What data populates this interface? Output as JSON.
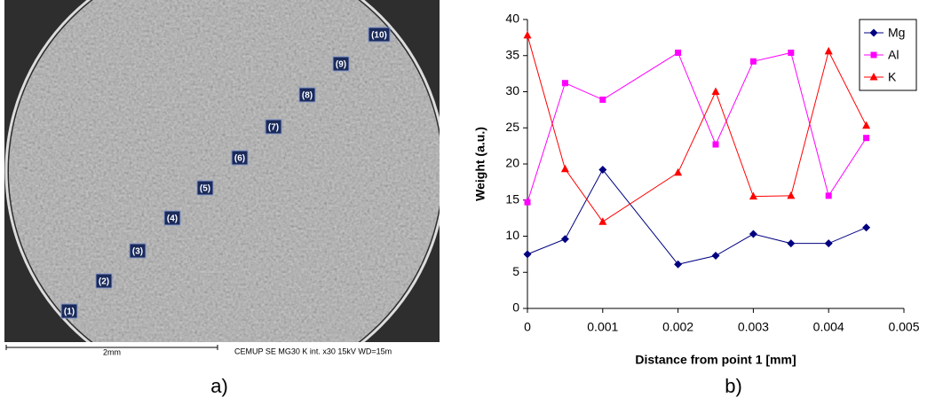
{
  "image_panel": {
    "panel_label": "a)",
    "point_labels": [
      "(1)",
      "(2)",
      "(3)",
      "(4)",
      "(5)",
      "(6)",
      "(7)",
      "(8)",
      "(9)",
      "(10)"
    ],
    "scale_bar": "2mm",
    "info": "CEMUP  SE  MG30 K int.  x30  15kV  WD=15m"
  },
  "chart_panel_label": "b)",
  "chart_data": {
    "type": "line",
    "x_label": "Distance from point 1 [mm]",
    "y_label": "Weight (a.u.)",
    "x": [
      0,
      0.0005,
      0.001,
      0.002,
      0.0025,
      0.003,
      0.0035,
      0.004,
      0.0045
    ],
    "series": [
      {
        "name": "Mg",
        "color": "#000080",
        "marker": "diamond",
        "values": [
          7.5,
          9.6,
          19.2,
          6.1,
          7.3,
          10.3,
          9.0,
          9.0,
          11.2
        ]
      },
      {
        "name": "Al",
        "color": "#ff00ff",
        "marker": "square",
        "values": [
          14.7,
          31.2,
          28.9,
          35.4,
          22.7,
          34.2,
          35.4,
          15.6,
          23.6
        ]
      },
      {
        "name": "K",
        "color": "#ff0000",
        "marker": "triangle",
        "values": [
          37.8,
          19.3,
          12.0,
          18.8,
          30.0,
          15.5,
          15.6,
          35.6,
          25.3
        ]
      }
    ],
    "xlim": [
      0,
      0.005
    ],
    "xticks": [
      0,
      0.001,
      0.002,
      0.003,
      0.004,
      0.005
    ],
    "ylim": [
      0,
      40
    ],
    "yticks": [
      0,
      5,
      10,
      15,
      20,
      25,
      30,
      35,
      40
    ],
    "grid": false,
    "legend": "top-right"
  }
}
